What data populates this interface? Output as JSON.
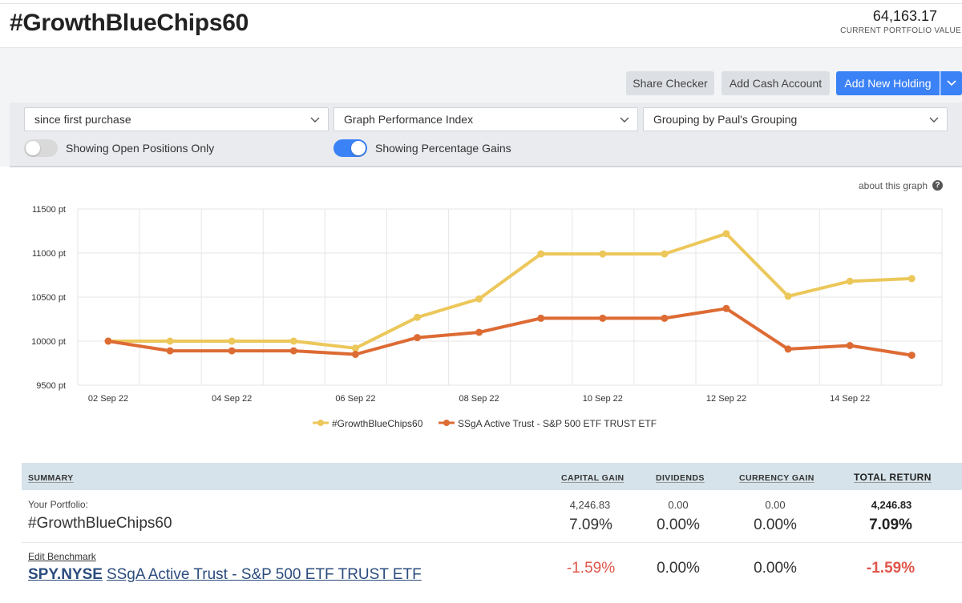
{
  "header": {
    "title": "#GrowthBlueChips60",
    "portfolio_value": "64,163.17",
    "portfolio_value_label": "CURRENT PORTFOLIO VALUE"
  },
  "actions": {
    "share_checker": "Share Checker",
    "add_cash_account": "Add Cash Account",
    "add_new_holding": "Add New Holding"
  },
  "filters": {
    "period": "since first purchase",
    "graph_type": "Graph Performance Index",
    "grouping": "Grouping by Paul's Grouping",
    "open_positions_toggle": {
      "label": "Showing Open Positions Only",
      "on": false
    },
    "percentage_gains_toggle": {
      "label": "Showing Percentage Gains",
      "on": true
    }
  },
  "about_graph": "about this graph",
  "colors": {
    "portfolio": "#ecc75a",
    "benchmark": "#dd6b34",
    "accent": "#3b82f6",
    "negative": "#e0564a"
  },
  "chart_data": {
    "type": "line",
    "ylim": [
      9500,
      11500
    ],
    "yticks": [
      9500,
      10000,
      10500,
      11000,
      11500
    ],
    "ytick_labels": [
      "9500 pt",
      "10000 pt",
      "10500 pt",
      "11000 pt",
      "11500 pt"
    ],
    "x": [
      "02 Sep 22",
      "03 Sep 22",
      "04 Sep 22",
      "05 Sep 22",
      "06 Sep 22",
      "07 Sep 22",
      "08 Sep 22",
      "09 Sep 22",
      "10 Sep 22",
      "11 Sep 22",
      "12 Sep 22",
      "13 Sep 22",
      "14 Sep 22",
      "15 Sep 22"
    ],
    "xtick_labels": [
      "02 Sep 22",
      "04 Sep 22",
      "06 Sep 22",
      "08 Sep 22",
      "10 Sep 22",
      "12 Sep 22",
      "14 Sep 22"
    ],
    "grid": true,
    "legend_position": "bottom-center",
    "series": [
      {
        "name": "#GrowthBlueChips60",
        "values": [
          10000,
          10000,
          10000,
          10000,
          9920,
          10270,
          10480,
          10990,
          10990,
          10990,
          11220,
          10510,
          10680,
          10710
        ]
      },
      {
        "name": "SSgA Active Trust - S&P 500 ETF TRUST ETF",
        "values": [
          10000,
          9890,
          9890,
          9890,
          9850,
          10040,
          10100,
          10260,
          10260,
          10260,
          10370,
          9910,
          9950,
          9840
        ]
      }
    ]
  },
  "summary": {
    "headers": {
      "summary": "SUMMARY",
      "capital_gain": "CAPITAL GAIN",
      "dividends": "DIVIDENDS",
      "currency_gain": "CURRENCY GAIN",
      "total_return": "TOTAL RETURN"
    },
    "portfolio_row": {
      "label": "Your Portfolio:",
      "name": "#GrowthBlueChips60",
      "capital_gain_amount": "4,246.83",
      "capital_gain_pct": "7.09%",
      "dividends_amount": "0.00",
      "dividends_pct": "0.00%",
      "currency_amount": "0.00",
      "currency_pct": "0.00%",
      "total_amount": "4,246.83",
      "total_pct": "7.09%"
    },
    "benchmark_row": {
      "edit_label": "Edit Benchmark",
      "ticker": "SPY.NYSE",
      "name": "SSgA Active Trust - S&P 500 ETF TRUST ETF",
      "capital_gain_pct": "-1.59%",
      "dividends_pct": "0.00%",
      "currency_pct": "0.00%",
      "total_pct": "-1.59%"
    }
  }
}
